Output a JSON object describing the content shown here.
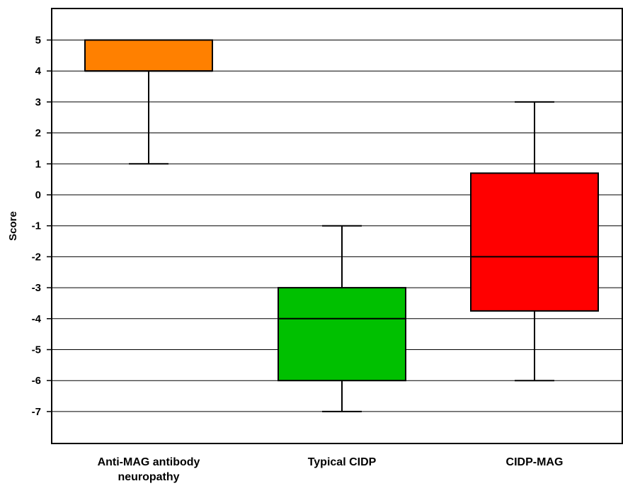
{
  "chart_data": {
    "type": "box",
    "title": "",
    "xlabel": "",
    "ylabel": "Score",
    "ylim": [
      -8,
      6
    ],
    "yticks": [
      5,
      4,
      3,
      2,
      1,
      0,
      -1,
      -2,
      -3,
      -4,
      -5,
      -6,
      -7
    ],
    "grid": "horizontal",
    "categories": [
      {
        "label_lines": [
          "Anti-MAG antibody",
          "neuropathy"
        ],
        "color": "#FF8000",
        "whisker_low": 1,
        "q1": 4,
        "median": 4,
        "q3": 5,
        "whisker_high": 5
      },
      {
        "label_lines": [
          "Typical CIDP"
        ],
        "color": "#00C000",
        "whisker_low": -7,
        "q1": -6,
        "median": -4,
        "q3": -3,
        "whisker_high": -1
      },
      {
        "label_lines": [
          "CIDP-MAG"
        ],
        "color": "#FF0000",
        "whisker_low": -6,
        "q1": -3.75,
        "median": -2,
        "q3": 0.7,
        "whisker_high": 3
      }
    ]
  }
}
